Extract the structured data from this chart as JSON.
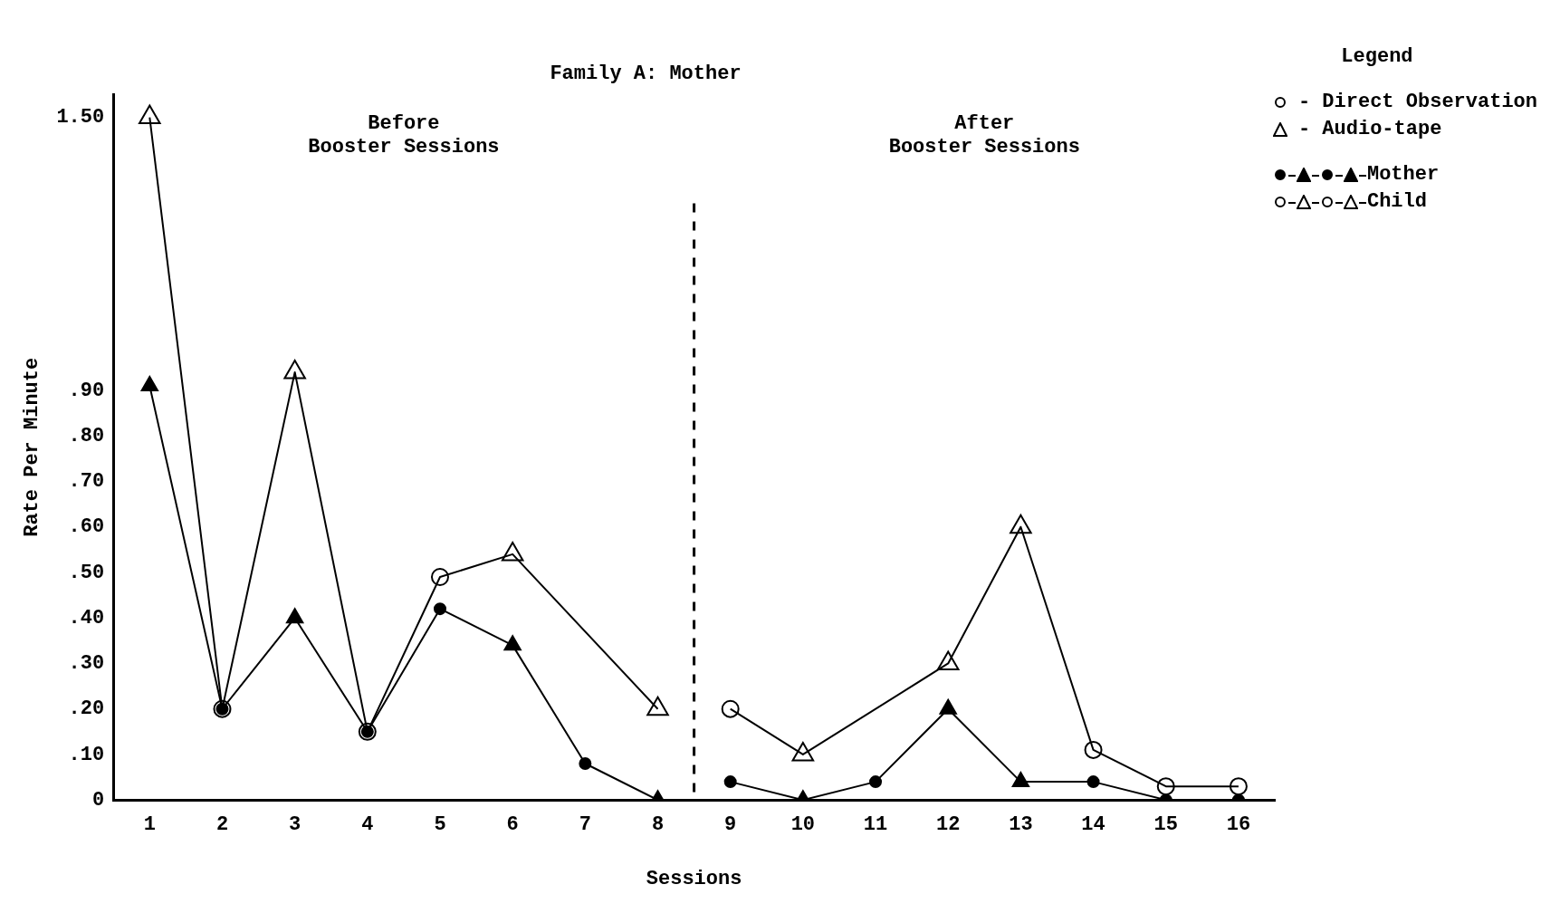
{
  "chart_data": {
    "type": "line",
    "title": "Family A: Mother",
    "xlabel": "Sessions",
    "ylabel": "Rate Per Minute",
    "legend_title": "Legend",
    "legend": "top right",
    "x": [
      1,
      2,
      3,
      4,
      5,
      6,
      7,
      8,
      9,
      10,
      11,
      12,
      13,
      14,
      15,
      16
    ],
    "xlim": [
      0.5,
      16.5
    ],
    "xticks": [
      1,
      2,
      3,
      4,
      5,
      6,
      7,
      8,
      9,
      10,
      11,
      12,
      13,
      14,
      15,
      16
    ],
    "ylim": [
      0,
      1.55
    ],
    "yticks": [
      0,
      {
        "value": 0.1,
        "label": ".10"
      },
      {
        "value": 0.2,
        "label": ".20"
      },
      {
        "value": 0.3,
        "label": ".30"
      },
      {
        "value": 0.4,
        "label": ".40"
      },
      {
        "value": 0.5,
        "label": ".50"
      },
      {
        "value": 0.6,
        "label": ".60"
      },
      {
        "value": 0.7,
        "label": ".70"
      },
      {
        "value": 0.8,
        "label": ".80"
      },
      {
        "value": 0.9,
        "label": ".90"
      },
      {
        "value": 1.5,
        "label": "1.50"
      }
    ],
    "grid": false,
    "line_style": "solid",
    "series": [
      {
        "name": "Mother",
        "color": "#000000",
        "values": [
          0.91,
          0.2,
          0.4,
          0.15,
          0.42,
          0.34,
          0.08,
          0.0,
          0.04,
          0.0,
          0.04,
          0.2,
          0.04,
          0.04,
          0.0,
          0.0
        ],
        "marker": [
          "triangle",
          "circle",
          "triangle",
          "circle",
          "circle",
          "triangle",
          "circle",
          "triangle",
          "circle",
          "triangle",
          "circle",
          "triangle",
          "triangle",
          "circle",
          "circle",
          "circle"
        ]
      },
      {
        "name": "Child",
        "color": "#000000",
        "values": [
          1.5,
          0.2,
          0.94,
          0.15,
          0.49,
          0.54,
          null,
          0.2,
          0.2,
          0.1,
          null,
          0.3,
          0.6,
          0.11,
          0.03,
          0.03
        ],
        "marker": [
          "triangle",
          "circle",
          "triangle",
          "circle",
          "circle",
          "triangle",
          null,
          "triangle",
          "circle",
          "triangle",
          null,
          "triangle",
          "triangle",
          "circle",
          "circle",
          "circle"
        ]
      }
    ],
    "ref_lines": [
      {
        "axis": "x",
        "value": 8.5,
        "line_style": "dashed",
        "color": "#000000"
      }
    ],
    "annotations": [
      "Before\nBooster Sessions",
      "After\nBooster Sessions",
      "- Direct Observation",
      "- Audio-tape"
    ]
  }
}
